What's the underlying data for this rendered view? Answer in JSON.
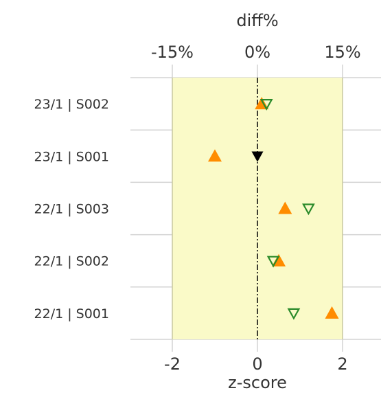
{
  "chart_data": {
    "type": "scatter",
    "top_axis": {
      "label": "diff%",
      "ticks": [
        -15,
        0,
        15
      ],
      "tick_labels": [
        "-15%",
        "0%",
        "15%"
      ]
    },
    "bottom_axis": {
      "label": "z-score",
      "ticks": [
        -2,
        0,
        2
      ],
      "tick_labels": [
        "-2",
        "0",
        "2"
      ],
      "range": [
        -3,
        3
      ]
    },
    "categories": [
      "23/1 | S002",
      "23/1 | S001",
      "22/1 | S003",
      "22/1 | S002",
      "22/1 | S001"
    ],
    "acceptable_band": [
      -2,
      2
    ],
    "series": [
      {
        "marker": "filled-triangle-up",
        "color": "#ff8c00",
        "points": [
          {
            "category": "23/1 | S002",
            "z": 0.1
          },
          {
            "category": "23/1 | S001",
            "z": -1.0
          },
          {
            "category": "22/1 | S003",
            "z": 0.65
          },
          {
            "category": "22/1 | S002",
            "z": 0.5
          },
          {
            "category": "22/1 | S001",
            "z": 1.75
          }
        ]
      },
      {
        "marker": "hollow-triangle-down",
        "color": "#2a8a2a",
        "points": [
          {
            "category": "23/1 | S002",
            "diff_pct": 1.6
          },
          {
            "category": "22/1 | S003",
            "diff_pct": 9.0
          },
          {
            "category": "22/1 | S002",
            "diff_pct": 2.8
          },
          {
            "category": "22/1 | S001",
            "diff_pct": 6.4
          }
        ]
      },
      {
        "marker": "filled-triangle-down",
        "color": "#000000",
        "points": [
          {
            "category": "23/1 | S001",
            "diff_pct": 0.0
          }
        ]
      }
    ],
    "colors": {
      "band": "#fafac8",
      "band_edge": "#c8c8a0",
      "grid": "#d3d3d3",
      "zero_line": "#000000"
    },
    "grid": true
  }
}
